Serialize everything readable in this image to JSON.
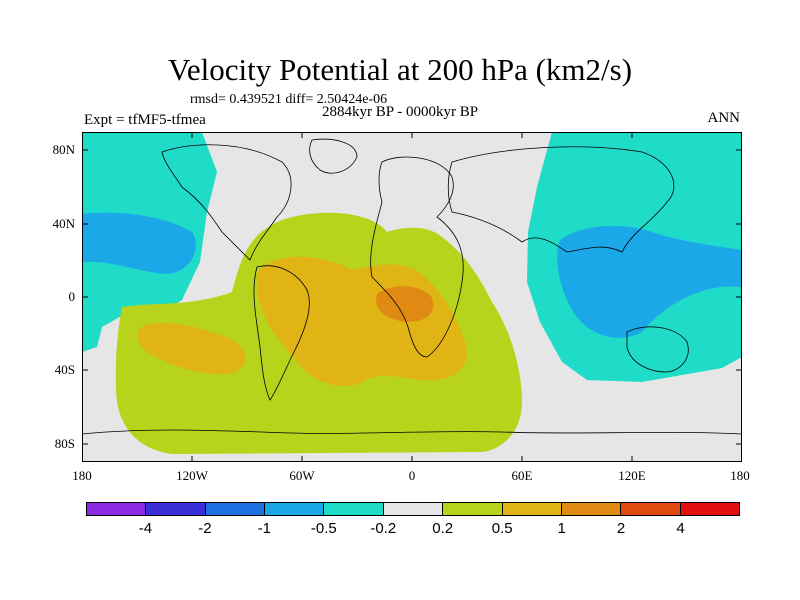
{
  "title": "Velocity Potential at 200 hPa (km2/s)",
  "rmsd_line": "rmsd= 0.439521 diff= 2.50424e-06",
  "period": "2884kyr BP - 0000kyr BP",
  "experiment": "Expt = tfMF5-tfmea",
  "season": "ANN",
  "lat_ticks": [
    "80N",
    "40N",
    "0",
    "40S",
    "80S"
  ],
  "lon_ticks": [
    "180",
    "120W",
    "60W",
    "0",
    "60E",
    "120E",
    "180"
  ],
  "colorbar": {
    "colors": [
      "#8a2be2",
      "#3a2fd6",
      "#1f6fe0",
      "#1aa8e8",
      "#1fdcc8",
      "#e6e6e6",
      "#b8d31c",
      "#e0b414",
      "#e08a14",
      "#e04a10",
      "#e21010"
    ],
    "labels": [
      "-4",
      "-2",
      "-1",
      "-0.5",
      "-0.2",
      "0.2",
      "0.5",
      "1",
      "2",
      "4"
    ]
  },
  "colors": {
    "neutral": "#e6e6e6",
    "pos1": "#b8d31c",
    "pos2": "#e0b414",
    "pos3": "#e08a14",
    "neg1": "#1fdcc8",
    "neg2": "#1aa8e8"
  }
}
